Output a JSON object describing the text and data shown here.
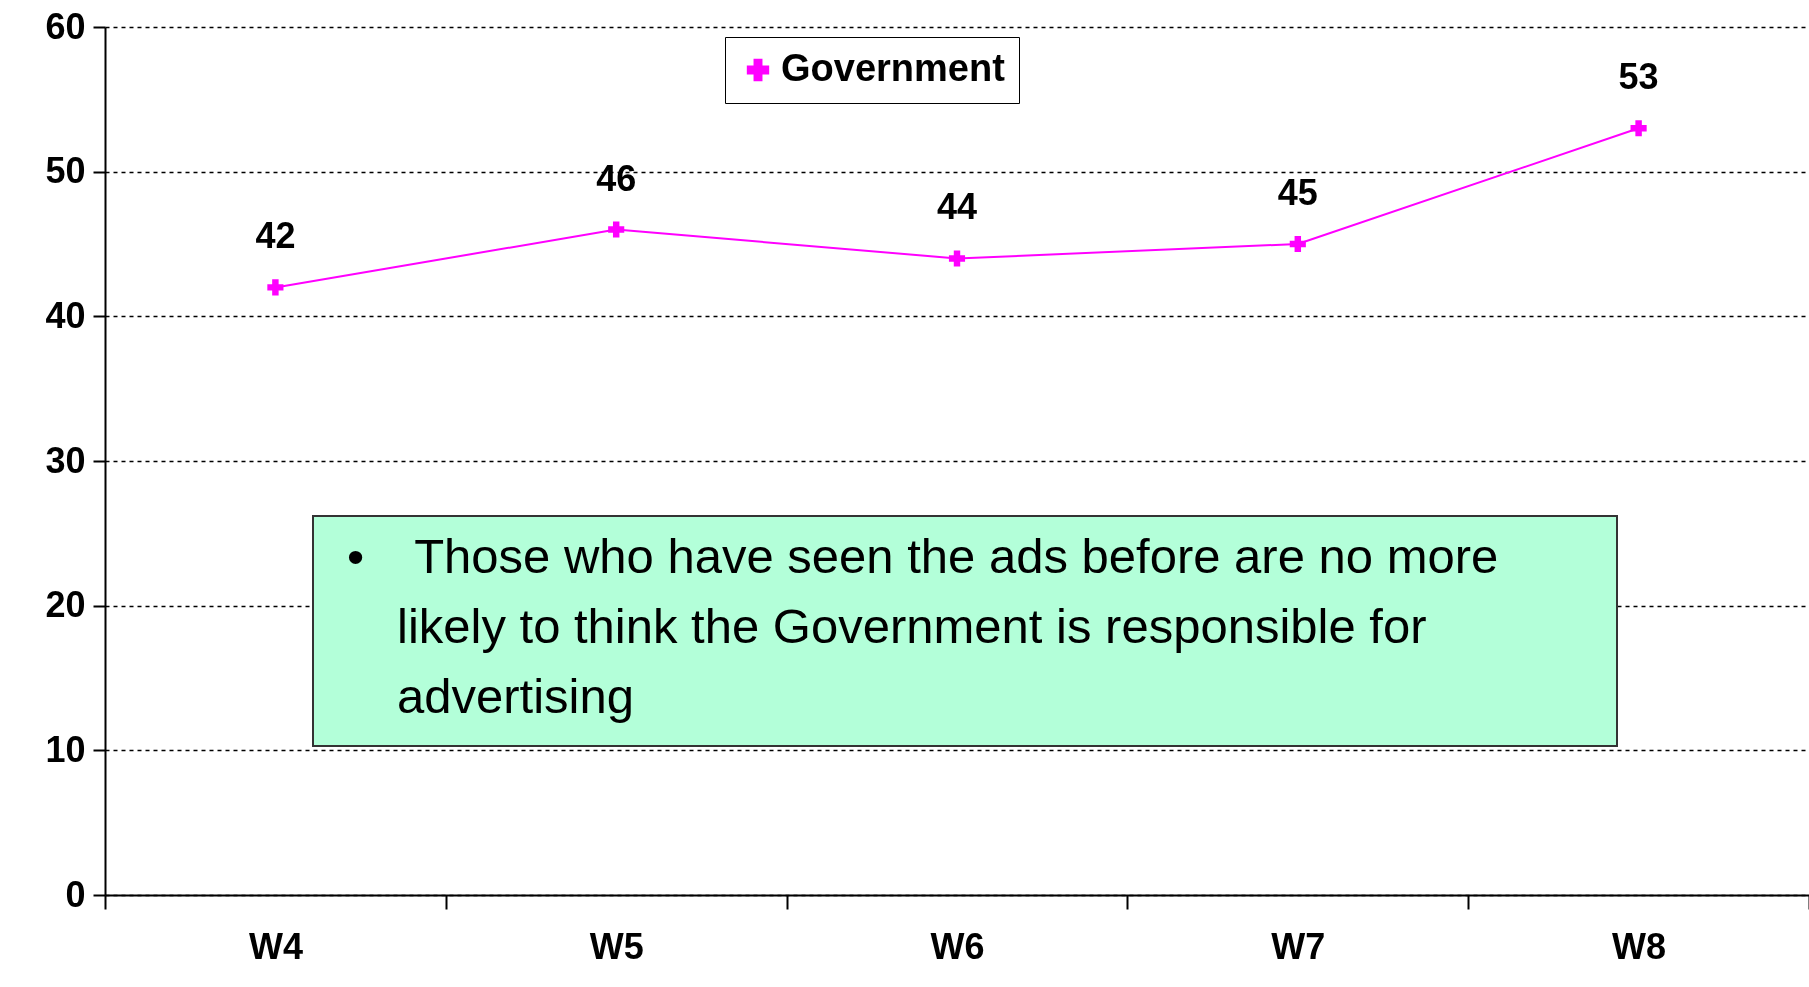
{
  "chart_data": {
    "type": "line",
    "categories": [
      "W4",
      "W5",
      "W6",
      "W7",
      "W8"
    ],
    "series": [
      {
        "name": "Government",
        "color": "#ff00ff",
        "values": [
          42,
          46,
          44,
          45,
          53
        ]
      }
    ],
    "ylim": [
      0,
      60
    ],
    "yticks": [
      0,
      10,
      20,
      30,
      40,
      50,
      60
    ],
    "grid": "y",
    "legend": "top",
    "marker": "cross",
    "line_style": "solid",
    "data_labels": true,
    "annotations": [
      "•\tThose who have seen the ads before are no more likely to think the Government is responsible for advertising"
    ]
  }
}
